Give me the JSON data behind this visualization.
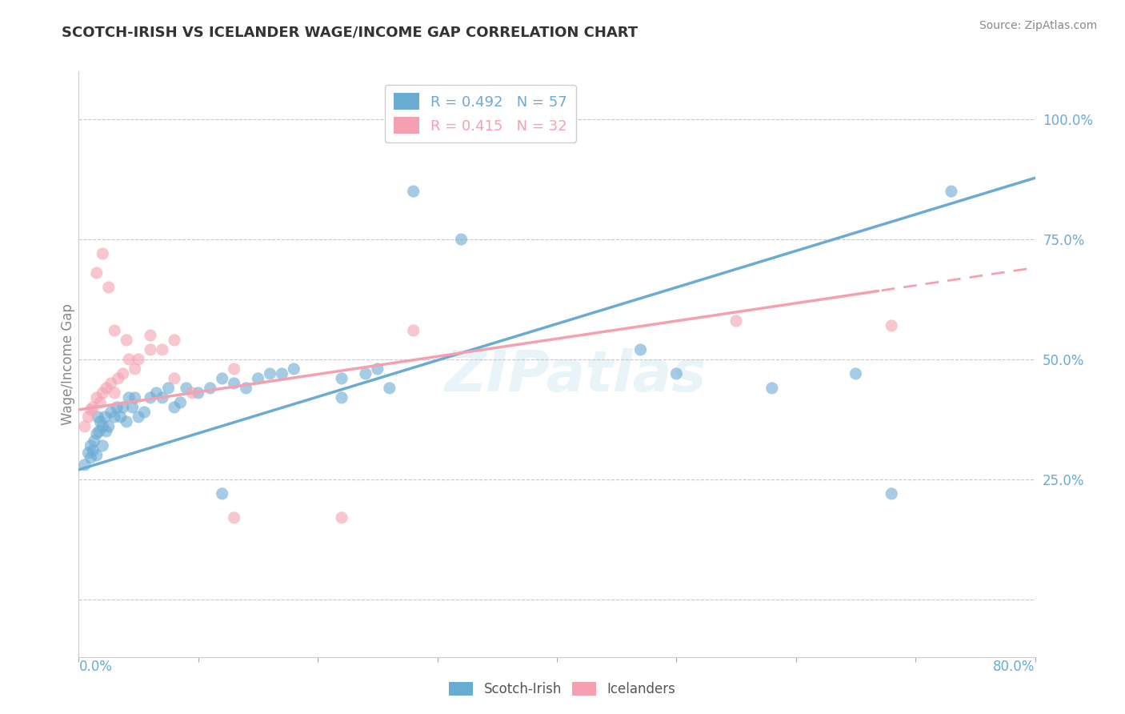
{
  "title": "SCOTCH-IRISH VS ICELANDER WAGE/INCOME GAP CORRELATION CHART",
  "source": "Source: ZipAtlas.com",
  "ylabel": "Wage/Income Gap",
  "xmin": 0.0,
  "xmax": 0.8,
  "ymin": -0.12,
  "ymax": 1.1,
  "grid_yticks": [
    0.0,
    0.25,
    0.5,
    0.75,
    1.0
  ],
  "right_ytick_labels": [
    "",
    "25.0%",
    "50.0%",
    "75.0%",
    "100.0%"
  ],
  "right_ytick_vals": [
    0.0,
    0.25,
    0.5,
    0.75,
    1.0
  ],
  "grid_color": "#c8c8c8",
  "blue_color": "#6aabd2",
  "pink_color": "#f4a0b0",
  "blue_R": 0.492,
  "blue_N": 57,
  "pink_R": 0.415,
  "pink_N": 32,
  "legend_label1": "Scotch-Irish",
  "legend_label2": "Icelanders",
  "watermark": "ZIPatlas",
  "title_fontsize": 13,
  "axis_label_color": "#6aabd2",
  "text_color": "#555555",
  "blue_intercept": 0.27,
  "blue_slope": 0.76,
  "pink_intercept": 0.395,
  "pink_slope": 0.37
}
